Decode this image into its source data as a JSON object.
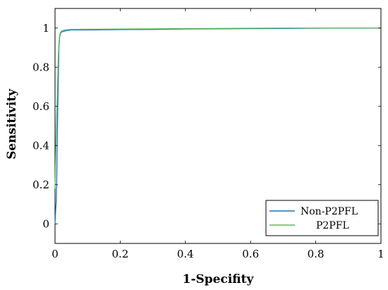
{
  "chart_data": {
    "type": "line",
    "xlabel": "1-Specifity",
    "ylabel": "Sensitivity",
    "xlim": [
      0,
      1
    ],
    "ylim": [
      -0.1,
      1.1
    ],
    "x_ticks": [
      0,
      0.2,
      0.4,
      0.6,
      0.8,
      1
    ],
    "y_ticks": [
      0,
      0.2,
      0.4,
      0.6,
      0.8,
      1
    ],
    "x_tick_labels": [
      "0",
      "0.2",
      "0.4",
      "0.6",
      "0.8",
      "1"
    ],
    "y_tick_labels": [
      "0",
      "0.2",
      "0.4",
      "0.6",
      "0.8",
      "1"
    ],
    "grid": false,
    "legend_position": "bottom-right",
    "series": [
      {
        "name": "Non-P2PFL",
        "color": "#1f77b4",
        "x": [
          0,
          0.002,
          0.004,
          0.006,
          0.008,
          0.01,
          0.012,
          0.014,
          0.016,
          0.018,
          0.02,
          0.025,
          0.03,
          0.04,
          0.05,
          0.1,
          0.2,
          0.3,
          0.4,
          0.5,
          0.6,
          0.7,
          0.8,
          0.9,
          1
        ],
        "y": [
          0,
          0.07,
          0.12,
          0.3,
          0.55,
          0.72,
          0.9,
          0.95,
          0.97,
          0.975,
          0.98,
          0.982,
          0.985,
          0.988,
          0.99,
          0.99,
          0.992,
          0.993,
          0.995,
          0.996,
          0.997,
          0.998,
          0.999,
          1,
          1
        ]
      },
      {
        "name": "P2PFL",
        "color": "#5cb85c",
        "x": [
          0,
          0.002,
          0.004,
          0.006,
          0.008,
          0.01,
          0.012,
          0.014,
          0.016,
          0.018,
          0.02,
          0.025,
          0.03,
          0.04,
          0.05,
          0.1,
          0.2,
          0.3,
          0.4,
          0.5,
          0.6,
          0.7,
          0.8,
          0.9,
          1
        ],
        "y": [
          0.18,
          0.35,
          0.5,
          0.6,
          0.72,
          0.85,
          0.92,
          0.96,
          0.975,
          0.98,
          0.985,
          0.988,
          0.99,
          0.992,
          0.993,
          0.994,
          0.995,
          0.996,
          0.997,
          0.998,
          0.999,
          1,
          1,
          1,
          1
        ]
      }
    ]
  }
}
